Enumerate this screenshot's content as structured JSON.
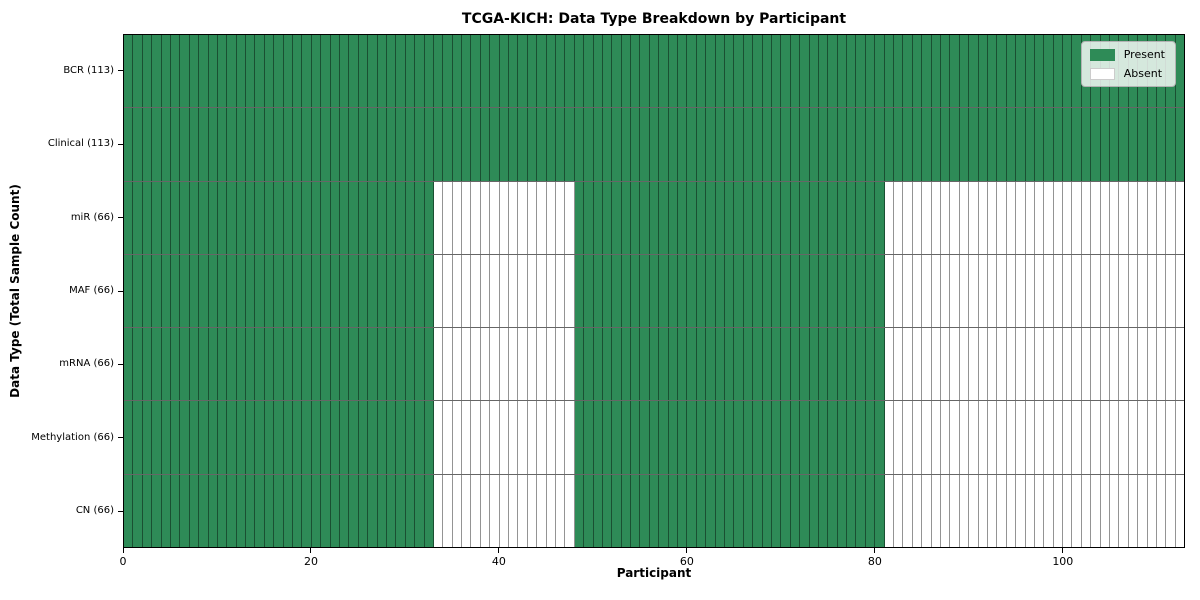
{
  "chart_data": {
    "type": "heatmap",
    "title": "TCGA-KICH: Data Type Breakdown by Participant",
    "xlabel": "Participant",
    "ylabel": "Data Type (Total Sample Count)",
    "n_participants": 113,
    "x_ticks": [
      0,
      20,
      40,
      60,
      80,
      100
    ],
    "xlim": [
      0,
      113
    ],
    "grid": false,
    "colors": {
      "present": "#2e8b57",
      "absent": "#ffffff"
    },
    "legend": {
      "position": "upper right",
      "entries": [
        {
          "label": "Present",
          "state": "present"
        },
        {
          "label": "Absent",
          "state": "absent"
        }
      ]
    },
    "rows": [
      {
        "label": "BCR (113)",
        "total_samples": 113,
        "present_ranges": [
          [
            0,
            112
          ]
        ]
      },
      {
        "label": "Clinical (113)",
        "total_samples": 113,
        "present_ranges": [
          [
            0,
            112
          ]
        ]
      },
      {
        "label": "miR (66)",
        "total_samples": 66,
        "present_ranges": [
          [
            0,
            32
          ],
          [
            48,
            80
          ]
        ]
      },
      {
        "label": "MAF (66)",
        "total_samples": 66,
        "present_ranges": [
          [
            0,
            32
          ],
          [
            48,
            80
          ]
        ]
      },
      {
        "label": "mRNA (66)",
        "total_samples": 66,
        "present_ranges": [
          [
            0,
            32
          ],
          [
            48,
            80
          ]
        ]
      },
      {
        "label": "Methylation (66)",
        "total_samples": 66,
        "present_ranges": [
          [
            0,
            32
          ],
          [
            48,
            80
          ]
        ]
      },
      {
        "label": "CN (66)",
        "total_samples": 66,
        "present_ranges": [
          [
            0,
            32
          ],
          [
            48,
            80
          ]
        ]
      }
    ]
  }
}
